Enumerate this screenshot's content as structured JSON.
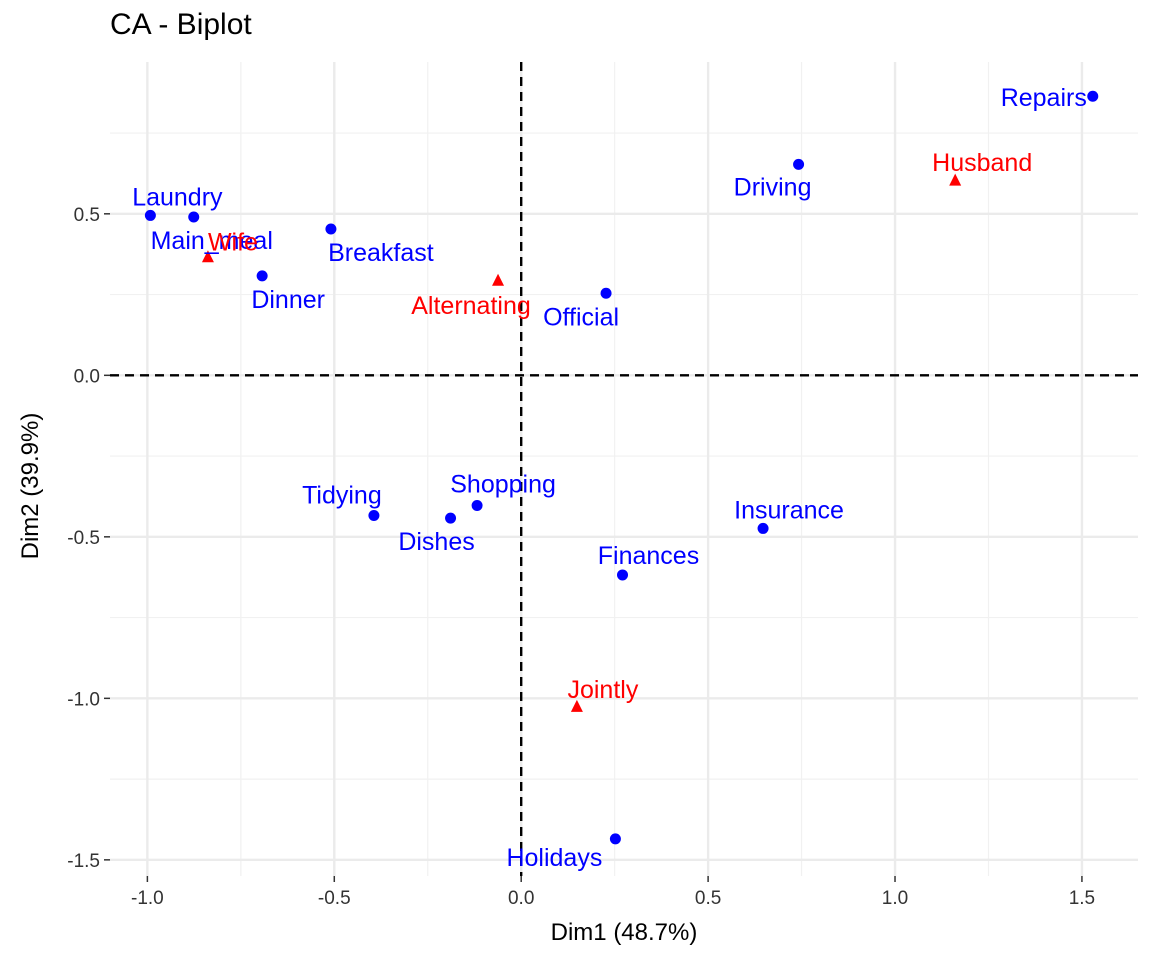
{
  "chart_data": {
    "type": "scatter",
    "title": "CA - Biplot",
    "xlabel": "Dim1 (48.7%)",
    "ylabel": "Dim2 (39.9%)",
    "xlim": [
      -1.1,
      1.65
    ],
    "ylim": [
      -1.55,
      0.97
    ],
    "x_ticks": [
      -1.0,
      -0.5,
      0.0,
      0.5,
      1.0,
      1.5
    ],
    "x_tick_labels": [
      "-1.0",
      "-0.5",
      "0.0",
      "0.5",
      "1.0",
      "1.5"
    ],
    "y_ticks": [
      -1.5,
      -1.0,
      -0.5,
      0.0,
      0.5
    ],
    "y_tick_labels": [
      "-1.5",
      "-1.0",
      "-0.5",
      "0.0",
      "0.5"
    ],
    "grid": true,
    "reference_lines": {
      "x": 0,
      "y": 0,
      "style": "dashed"
    },
    "series": [
      {
        "color": "#0000ff",
        "marker": "circle",
        "points": [
          {
            "label": "Laundry",
            "x": -0.992,
            "y": 0.495
          },
          {
            "label": "Main_meal",
            "x": -0.876,
            "y": 0.49
          },
          {
            "label": "Dinner",
            "x": -0.693,
            "y": 0.308
          },
          {
            "label": "Breakfast",
            "x": -0.509,
            "y": 0.453
          },
          {
            "label": "Tidying",
            "x": -0.394,
            "y": -0.434
          },
          {
            "label": "Dishes",
            "x": -0.189,
            "y": -0.442
          },
          {
            "label": "Shopping",
            "x": -0.118,
            "y": -0.403
          },
          {
            "label": "Official",
            "x": 0.227,
            "y": 0.254
          },
          {
            "label": "Driving",
            "x": 0.742,
            "y": 0.653
          },
          {
            "label": "Finances",
            "x": 0.271,
            "y": -0.618
          },
          {
            "label": "Insurance",
            "x": 0.647,
            "y": -0.474
          },
          {
            "label": "Repairs",
            "x": 1.529,
            "y": 0.864
          },
          {
            "label": "Holidays",
            "x": 0.252,
            "y": -1.435
          }
        ]
      },
      {
        "color": "#ff0000",
        "marker": "triangle",
        "points": [
          {
            "label": "Wife",
            "x": -0.838,
            "y": 0.365
          },
          {
            "label": "Alternating",
            "x": -0.062,
            "y": 0.292
          },
          {
            "label": "Husband",
            "x": 1.161,
            "y": 0.602
          },
          {
            "label": "Jointly",
            "x": 0.149,
            "y": -1.027
          }
        ]
      }
    ]
  }
}
